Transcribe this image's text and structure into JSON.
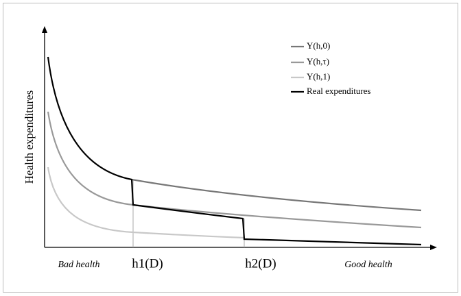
{
  "y_axis_label": "Health expenditures",
  "x_labels": [
    "Bad health",
    "h1(D)",
    "h2(D)",
    "Good health"
  ],
  "legend": [
    "Y(h,0)",
    "Y(h,τ)",
    "Y(h,1)",
    "Real expenditures"
  ]
}
